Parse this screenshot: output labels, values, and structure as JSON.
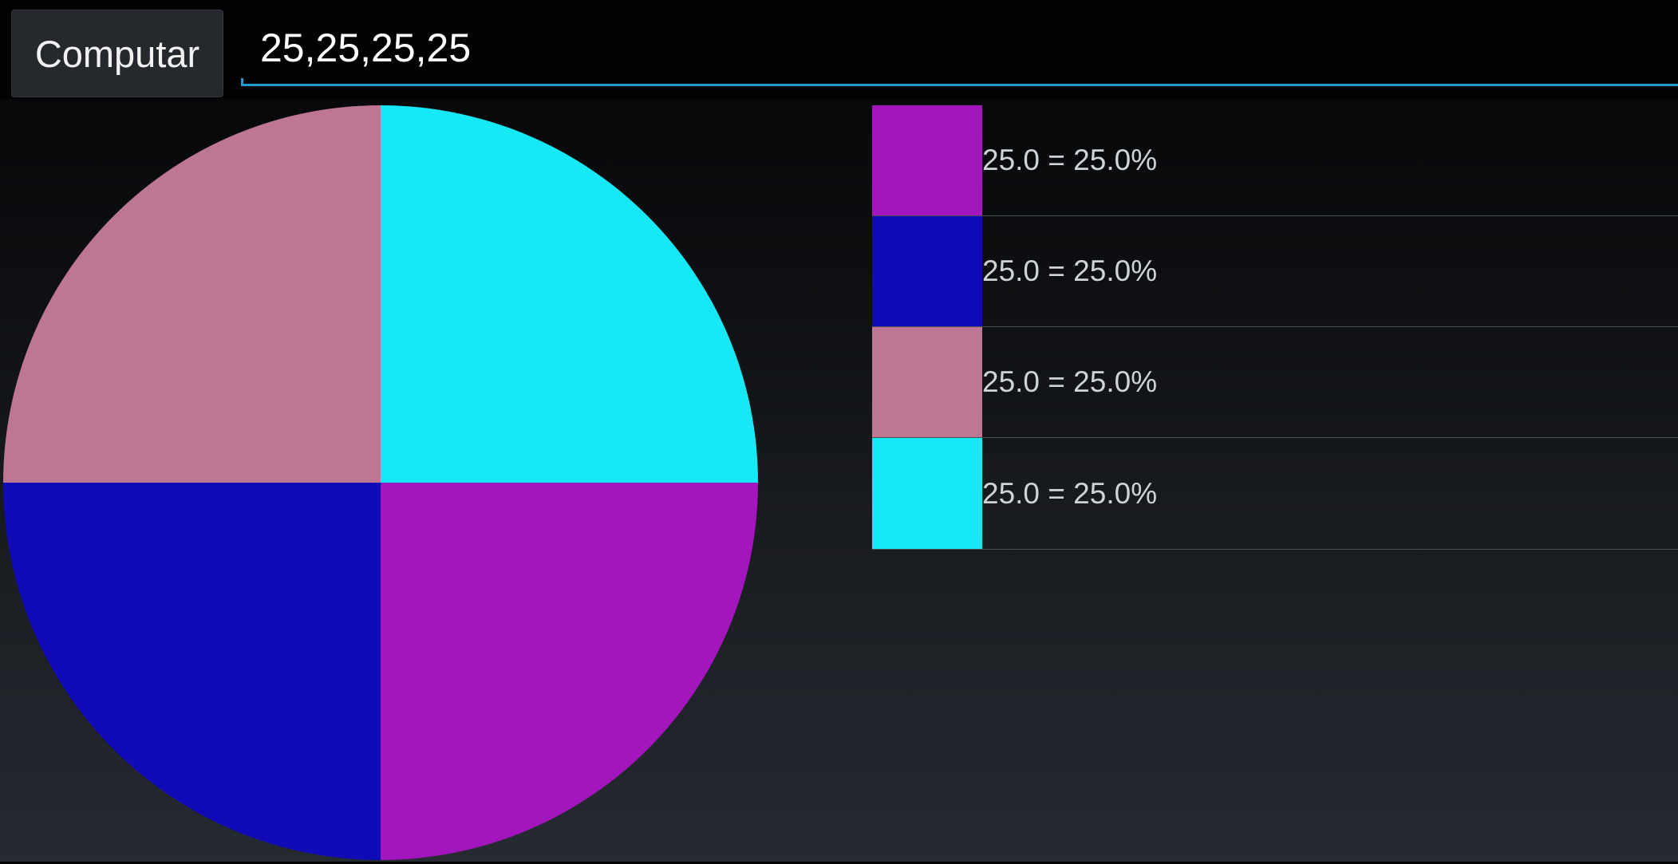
{
  "toolbar": {
    "compute_label": "Computar"
  },
  "input": {
    "value": "25,25,25,25"
  },
  "colors": {
    "accent": "#1f9bd1",
    "slice_1": "#a416bd",
    "slice_2": "#100bb7",
    "slice_3": "#bd7694",
    "slice_4": "#16e8f5"
  },
  "chart_data": {
    "type": "pie",
    "start": "right",
    "direction": "clockwise",
    "slices": [
      {
        "value": 25.0,
        "percent": 25.0,
        "color": "#a416bd"
      },
      {
        "value": 25.0,
        "percent": 25.0,
        "color": "#100bb7"
      },
      {
        "value": 25.0,
        "percent": 25.0,
        "color": "#bd7694"
      },
      {
        "value": 25.0,
        "percent": 25.0,
        "color": "#16e8f5"
      }
    ]
  },
  "legend": {
    "items": [
      {
        "label": "25.0 = 25.0%",
        "color": "#a416bd"
      },
      {
        "label": "25.0 = 25.0%",
        "color": "#100bb7"
      },
      {
        "label": "25.0 = 25.0%",
        "color": "#bd7694"
      },
      {
        "label": "25.0 = 25.0%",
        "color": "#16e8f5"
      }
    ]
  }
}
